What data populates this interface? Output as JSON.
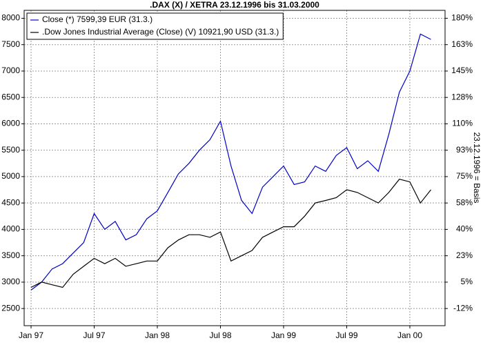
{
  "chart_data": {
    "type": "line",
    "title": ".DAX (X) / XETRA 23.12.1996 bis 31.03.2000",
    "y2_label": "23.12.1996 = Basis",
    "categories": [
      "Jan 97",
      null,
      null,
      null,
      null,
      null,
      "Jul 97",
      null,
      null,
      null,
      null,
      null,
      "Jan 98",
      null,
      null,
      null,
      null,
      null,
      "Jul 98",
      null,
      null,
      null,
      null,
      null,
      "Jan 99",
      null,
      null,
      null,
      null,
      null,
      "Jul 99",
      null,
      null,
      null,
      null,
      null,
      "Jan 00",
      null,
      null
    ],
    "series": [
      {
        "name": "Close (*) 7599,39 EUR (31.3.)",
        "color": "#0000c8",
        "values": [
          2850,
          3000,
          3250,
          3350,
          3550,
          3750,
          4300,
          4000,
          4150,
          3800,
          3900,
          4200,
          4350,
          4700,
          5050,
          5250,
          5500,
          5700,
          6050,
          5200,
          4550,
          4300,
          4800,
          5000,
          5200,
          4850,
          4900,
          5200,
          5100,
          5400,
          5550,
          5150,
          5300,
          5100,
          5800,
          6600,
          7000,
          7700,
          7600
        ]
      },
      {
        "name": ".Dow Jones Industrial Average (Close) (V) 10921,90 USD (31.3.)",
        "color": "#000000",
        "axis": "y2",
        "values": [
          1.8,
          5.3,
          3.5,
          1.8,
          10.5,
          15.8,
          21.1,
          17.5,
          21.1,
          15.8,
          17.5,
          19.3,
          19.3,
          28.1,
          33.3,
          36.8,
          36.8,
          35.1,
          38.6,
          19.3,
          22.8,
          26.3,
          35.1,
          38.6,
          42.1,
          42.1,
          49.1,
          57.9,
          59.6,
          61.4,
          66.7,
          64.9,
          61.4,
          57.9,
          64.9,
          73.7,
          71.9,
          57.9,
          66.7
        ]
      }
    ],
    "ylim": [
      2175,
      8150
    ],
    "yticks": [
      2500,
      3000,
      3500,
      4000,
      4500,
      5000,
      5500,
      6000,
      6500,
      7000,
      7500,
      8000
    ],
    "y2lim": [
      -23.68,
      185.96
    ],
    "y2ticks": [
      {
        "value": -12.28,
        "label": "-12%"
      },
      {
        "value": 5.26,
        "label": "5%"
      },
      {
        "value": 22.81,
        "label": "23%"
      },
      {
        "value": 40.35,
        "label": "40%"
      },
      {
        "value": 57.89,
        "label": "58%"
      },
      {
        "value": 75.44,
        "label": "75%"
      },
      {
        "value": 92.98,
        "label": "93%"
      },
      {
        "value": 110.53,
        "label": "110%"
      },
      {
        "value": 128.07,
        "label": "128%"
      },
      {
        "value": 145.61,
        "label": "145%"
      },
      {
        "value": 163.16,
        "label": "163%"
      },
      {
        "value": 180.7,
        "label": "180%"
      }
    ],
    "grid": true
  }
}
